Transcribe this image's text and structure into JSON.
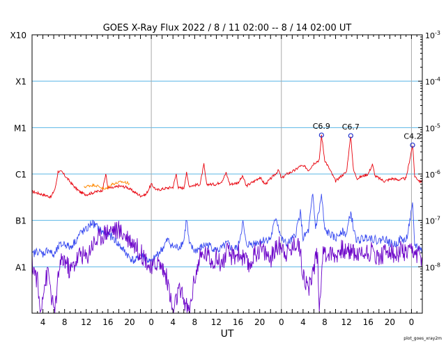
{
  "chart_data": {
    "type": "line",
    "title": "GOES X-Ray Flux   2022 /  8 / 11   02:00 --  8 / 14   02:00   UT",
    "xlabel": "UT",
    "ylabel": "",
    "x_range_hours": [
      0,
      72
    ],
    "y_scale": "log",
    "ylim": [
      1e-09,
      0.001
    ],
    "grid": true,
    "x_tick_labels": [
      "4",
      "8",
      "12",
      "16",
      "20",
      "0",
      "4",
      "8",
      "12",
      "16",
      "20",
      "0",
      "4",
      "8",
      "12",
      "16",
      "20",
      "0"
    ],
    "x_tick_hours": [
      2,
      6,
      10,
      14,
      18,
      22,
      26,
      30,
      34,
      38,
      42,
      46,
      50,
      54,
      58,
      62,
      66,
      70
    ],
    "day_boundaries_hours": [
      22,
      46,
      70
    ],
    "left_class_labels": [
      {
        "label": "X10",
        "value": 0.001
      },
      {
        "label": "X1",
        "value": 0.0001
      },
      {
        "label": "M1",
        "value": 1e-05
      },
      {
        "label": "C1",
        "value": 1e-06
      },
      {
        "label": "B1",
        "value": 1e-07
      },
      {
        "label": "A1",
        "value": 1e-08
      }
    ],
    "right_tick_labels": [
      {
        "mantissa": "10",
        "exp": "-3",
        "value": 0.001
      },
      {
        "mantissa": "10",
        "exp": "-4",
        "value": 0.0001
      },
      {
        "mantissa": "10",
        "exp": "-5",
        "value": 1e-05
      },
      {
        "mantissa": "10",
        "exp": "-6",
        "value": 1e-06
      },
      {
        "mantissa": "10",
        "exp": "-7",
        "value": 1e-07
      },
      {
        "mantissa": "10",
        "exp": "-8",
        "value": 1e-08
      }
    ],
    "annotations": [
      {
        "label": "C6.9",
        "x_hours": 53.4,
        "value": 6.9e-06
      },
      {
        "label": "C6.7",
        "x_hours": 58.8,
        "value": 6.7e-06
      },
      {
        "label": "C4.2",
        "x_hours": 70.2,
        "value": 4.2e-06
      }
    ],
    "series": [
      {
        "color": "#e8000b",
        "points": [
          [
            0,
            4.2e-07
          ],
          [
            2,
            3.6e-07
          ],
          [
            3.5,
            3.2e-07
          ],
          [
            4.3,
            5e-07
          ],
          [
            4.8,
            1.15e-06
          ],
          [
            5.5,
            1.1e-06
          ],
          [
            6.5,
            8e-07
          ],
          [
            8,
            5e-07
          ],
          [
            9,
            4e-07
          ],
          [
            10,
            3.6e-07
          ],
          [
            12,
            4.2e-07
          ],
          [
            13,
            4.5e-07
          ],
          [
            13.6,
            1e-06
          ],
          [
            14,
            5e-07
          ],
          [
            15,
            5e-07
          ],
          [
            16,
            5.5e-07
          ],
          [
            17.5,
            5.2e-07
          ],
          [
            19,
            4e-07
          ],
          [
            20,
            3.4e-07
          ],
          [
            21,
            3.6e-07
          ],
          [
            22,
            6e-07
          ],
          [
            23,
            4.5e-07
          ],
          [
            25,
            5e-07
          ],
          [
            26,
            5.2e-07
          ],
          [
            26.6,
            1e-06
          ],
          [
            27,
            5e-07
          ],
          [
            28,
            5e-07
          ],
          [
            28.5,
            1.05e-06
          ],
          [
            29,
            5.5e-07
          ],
          [
            31,
            6e-07
          ],
          [
            31.7,
            1.6e-06
          ],
          [
            32.2,
            6e-07
          ],
          [
            34,
            6e-07
          ],
          [
            35,
            7e-07
          ],
          [
            35.8,
            1.05e-06
          ],
          [
            36.5,
            6e-07
          ],
          [
            38,
            6.5e-07
          ],
          [
            38.9,
            9e-07
          ],
          [
            39.5,
            5.5e-07
          ],
          [
            41,
            7e-07
          ],
          [
            42,
            8.5e-07
          ],
          [
            43,
            6e-07
          ],
          [
            44.5,
            9e-07
          ],
          [
            45.5,
            1.2e-06
          ],
          [
            46,
            8e-07
          ],
          [
            47,
            1e-06
          ],
          [
            48.5,
            1.2e-06
          ],
          [
            49.5,
            1.5e-06
          ],
          [
            50.5,
            1.4e-06
          ],
          [
            51,
            1.2e-06
          ],
          [
            52,
            1.7e-06
          ],
          [
            53,
            2e-06
          ],
          [
            53.4,
            6.9e-06
          ],
          [
            54,
            2e-06
          ],
          [
            55,
            1.2e-06
          ],
          [
            56,
            7e-07
          ],
          [
            57,
            9e-07
          ],
          [
            58,
            1.1e-06
          ],
          [
            58.8,
            6.7e-06
          ],
          [
            59.3,
            1.2e-06
          ],
          [
            60,
            8e-07
          ],
          [
            61,
            9e-07
          ],
          [
            62,
            1e-06
          ],
          [
            62.8,
            1.6e-06
          ],
          [
            63.3,
            9e-07
          ],
          [
            65,
            7e-07
          ],
          [
            66.5,
            8e-07
          ],
          [
            67.5,
            7.5e-07
          ],
          [
            69,
            8e-07
          ],
          [
            70.2,
            4.2e-06
          ],
          [
            70.6,
            9e-07
          ],
          [
            71.5,
            7e-07
          ],
          [
            72,
            6.8e-07
          ]
        ]
      },
      {
        "color": "#ff8800",
        "points": [
          [
            9.6,
            5.2e-07
          ],
          [
            10.5,
            5.6e-07
          ],
          [
            11.5,
            5.8e-07
          ],
          [
            12.5,
            5.3e-07
          ],
          [
            13.4,
            4.6e-07
          ],
          [
            14.8,
            6.1e-07
          ],
          [
            15.5,
            6.3e-07
          ],
          [
            16.5,
            6.8e-07
          ],
          [
            17.4,
            6.5e-07
          ],
          [
            18,
            6.2e-07
          ]
        ]
      },
      {
        "color": "#3a4cf0",
        "points": [
          [
            0,
            1.8e-08
          ],
          [
            1,
            2.2e-08
          ],
          [
            2,
            1.9e-08
          ],
          [
            3,
            2.4e-08
          ],
          [
            4,
            1.7e-08
          ],
          [
            5,
            2.8e-08
          ],
          [
            6,
            3.2e-08
          ],
          [
            7,
            2.6e-08
          ],
          [
            8,
            3.6e-08
          ],
          [
            9,
            5.5e-08
          ],
          [
            10,
            6.2e-08
          ],
          [
            11,
            9e-08
          ],
          [
            12,
            7.2e-08
          ],
          [
            13,
            5.5e-08
          ],
          [
            14,
            5e-08
          ],
          [
            15,
            4.2e-08
          ],
          [
            16,
            3e-08
          ],
          [
            17,
            2.2e-08
          ],
          [
            18,
            1.6e-08
          ],
          [
            19,
            1.3e-08
          ],
          [
            20,
            1.8e-08
          ],
          [
            21,
            1.5e-08
          ],
          [
            22,
            1.2e-08
          ],
          [
            23,
            1.8e-08
          ],
          [
            24,
            2.4e-08
          ],
          [
            25,
            3.8e-08
          ],
          [
            26,
            2.7e-08
          ],
          [
            27,
            2.6e-08
          ],
          [
            28,
            3.6e-08
          ],
          [
            28.5,
            1.1e-07
          ],
          [
            29,
            3e-08
          ],
          [
            30,
            2.2e-08
          ],
          [
            31,
            2.5e-08
          ],
          [
            32,
            3e-08
          ],
          [
            33,
            2.8e-08
          ],
          [
            34,
            2.2e-08
          ],
          [
            35,
            2.5e-08
          ],
          [
            36,
            3.2e-08
          ],
          [
            37,
            2.4e-08
          ],
          [
            38,
            2.6e-08
          ],
          [
            38.9,
            9e-08
          ],
          [
            39.5,
            3e-08
          ],
          [
            41,
            3.2e-08
          ],
          [
            42,
            3.6e-08
          ],
          [
            43,
            3.8e-08
          ],
          [
            44,
            4e-08
          ],
          [
            45,
            1.2e-07
          ],
          [
            46,
            4e-08
          ],
          [
            47,
            3e-08
          ],
          [
            48.5,
            4.5e-08
          ],
          [
            49.5,
            1.5e-07
          ],
          [
            50,
            4e-08
          ],
          [
            51,
            6e-08
          ],
          [
            51.8,
            3.6e-07
          ],
          [
            52.3,
            7e-08
          ],
          [
            53,
            1.7e-07
          ],
          [
            53.4,
            3.5e-07
          ],
          [
            54,
            6e-08
          ],
          [
            55,
            5e-08
          ],
          [
            56,
            4e-08
          ],
          [
            57,
            6e-08
          ],
          [
            58,
            5e-08
          ],
          [
            58.8,
            1.5e-07
          ],
          [
            59.5,
            5e-08
          ],
          [
            60,
            3.6e-08
          ],
          [
            61,
            4e-08
          ],
          [
            62,
            4.5e-08
          ],
          [
            63,
            4e-08
          ],
          [
            64,
            3.6e-08
          ],
          [
            65,
            4.2e-08
          ],
          [
            66,
            3.2e-08
          ],
          [
            67,
            3e-08
          ],
          [
            68,
            4e-08
          ],
          [
            69,
            3.6e-08
          ],
          [
            70.2,
            2e-07
          ],
          [
            70.6,
            3e-08
          ],
          [
            71.5,
            2.5e-08
          ],
          [
            72,
            2.2e-08
          ]
        ]
      },
      {
        "color": "#6a00c8",
        "points": [
          [
            0,
            1.2e-08
          ],
          [
            1,
            5e-09
          ],
          [
            1.5,
            1e-09
          ],
          [
            2,
            3e-09
          ],
          [
            3,
            8e-09
          ],
          [
            4,
            1e-09
          ],
          [
            4.5,
            2e-09
          ],
          [
            5,
            1e-08
          ],
          [
            6,
            1.5e-08
          ],
          [
            7,
            8e-09
          ],
          [
            8,
            1.3e-08
          ],
          [
            9,
            2e-08
          ],
          [
            10,
            1.5e-08
          ],
          [
            11,
            3e-08
          ],
          [
            12,
            3.8e-08
          ],
          [
            13,
            5e-08
          ],
          [
            14,
            6e-08
          ],
          [
            15,
            6.5e-08
          ],
          [
            16,
            6e-08
          ],
          [
            17,
            5e-08
          ],
          [
            18,
            4e-08
          ],
          [
            19,
            3e-08
          ],
          [
            20,
            2e-08
          ],
          [
            21,
            1.5e-08
          ],
          [
            22,
            8e-09
          ],
          [
            23,
            1.3e-08
          ],
          [
            24,
            1e-08
          ],
          [
            25,
            5e-09
          ],
          [
            26,
            1e-09
          ],
          [
            27,
            3e-09
          ],
          [
            28,
            2e-09
          ],
          [
            29,
            1e-09
          ],
          [
            30,
            6e-09
          ],
          [
            31,
            1.5e-08
          ],
          [
            32,
            2e-08
          ],
          [
            33,
            1.4e-08
          ],
          [
            34,
            1.5e-08
          ],
          [
            35,
            1.2e-08
          ],
          [
            36,
            2e-08
          ],
          [
            37,
            1.6e-08
          ],
          [
            38,
            2e-08
          ],
          [
            39,
            1.5e-08
          ],
          [
            40,
            1e-08
          ],
          [
            41,
            1.8e-08
          ],
          [
            42,
            2.5e-08
          ],
          [
            43,
            2e-08
          ],
          [
            44,
            1.5e-08
          ],
          [
            45,
            2.5e-08
          ],
          [
            46,
            3e-08
          ],
          [
            47,
            2e-08
          ],
          [
            48,
            2.5e-08
          ],
          [
            49,
            4e-08
          ],
          [
            50,
            8e-09
          ],
          [
            51,
            3e-09
          ],
          [
            52,
            1e-08
          ],
          [
            52.7,
            2e-08
          ],
          [
            53,
            1e-09
          ],
          [
            53.5,
            1.5e-08
          ],
          [
            54,
            2e-08
          ],
          [
            55,
            2e-08
          ],
          [
            56,
            1.8e-08
          ],
          [
            57,
            2.5e-08
          ],
          [
            58,
            2e-08
          ],
          [
            59,
            2.4e-08
          ],
          [
            60,
            1.8e-08
          ],
          [
            61,
            2e-08
          ],
          [
            62,
            2.2e-08
          ],
          [
            63,
            2e-08
          ],
          [
            64,
            1.6e-08
          ],
          [
            65,
            2e-08
          ],
          [
            66,
            2.4e-08
          ],
          [
            67,
            1.6e-08
          ],
          [
            68,
            2.2e-08
          ],
          [
            69,
            1.8e-08
          ],
          [
            70,
            2e-08
          ],
          [
            71,
            1.8e-08
          ],
          [
            72,
            1.6e-08
          ]
        ]
      }
    ]
  },
  "footer": {
    "credit": "plot_goes_xray2m"
  }
}
